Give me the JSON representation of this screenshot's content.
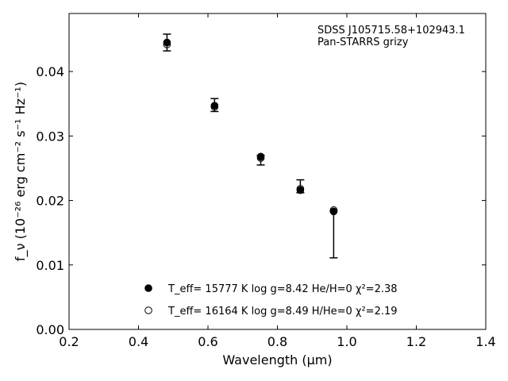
{
  "chart_data": {
    "type": "scatter",
    "title": "",
    "xlabel": "Wavelength (μm)",
    "ylabel": "f_ν (10⁻²⁶ erg cm⁻² s⁻¹ Hz⁻¹)",
    "xlim": [
      0.2,
      1.4
    ],
    "ylim": [
      0.0,
      0.049
    ],
    "x_ticks": [
      0.2,
      0.4,
      0.6,
      0.8,
      1.0,
      1.2,
      1.4
    ],
    "x_tick_labels": [
      "0.2",
      "0.4",
      "0.6",
      "0.8",
      "1.0",
      "1.2",
      "1.4"
    ],
    "y_ticks": [
      0.0,
      0.01,
      0.02,
      0.03,
      0.04
    ],
    "y_tick_labels": [
      "0.00",
      "0.01",
      "0.02",
      "0.03",
      "0.04"
    ],
    "grid": false,
    "annotation": [
      "SDSS J105715.58+102943.1",
      "Pan-STARRS grizy"
    ],
    "observed": {
      "x": [
        0.482,
        0.619,
        0.752,
        0.866,
        0.962
      ],
      "y": [
        0.0445,
        0.0348,
        0.0265,
        0.0222,
        0.0182
      ],
      "yerr_low": [
        0.0013,
        0.001,
        0.001,
        0.001,
        0.0071
      ],
      "yerr_high": [
        0.0013,
        0.001,
        0.0005,
        0.001,
        0.0001
      ],
      "marker": "errorbar-only"
    },
    "series": [
      {
        "label": "T_eff= 15777 K  log g=8.42  He/H=0  χ²=2.38",
        "marker": "filled-circle",
        "color": "#000000",
        "x": [
          0.482,
          0.619,
          0.752,
          0.866,
          0.962
        ],
        "y": [
          0.0445,
          0.0347,
          0.0268,
          0.0216,
          0.0183
        ]
      },
      {
        "label": "T_eff= 16164 K  log g=8.49  H/He=0  χ²=2.19",
        "marker": "open-circle",
        "color": "#000000",
        "x": [
          0.482,
          0.619,
          0.752,
          0.866,
          0.962
        ],
        "y": [
          0.0442,
          0.0345,
          0.0266,
          0.0218,
          0.0185
        ]
      }
    ],
    "legend_placement": "lower-center"
  }
}
